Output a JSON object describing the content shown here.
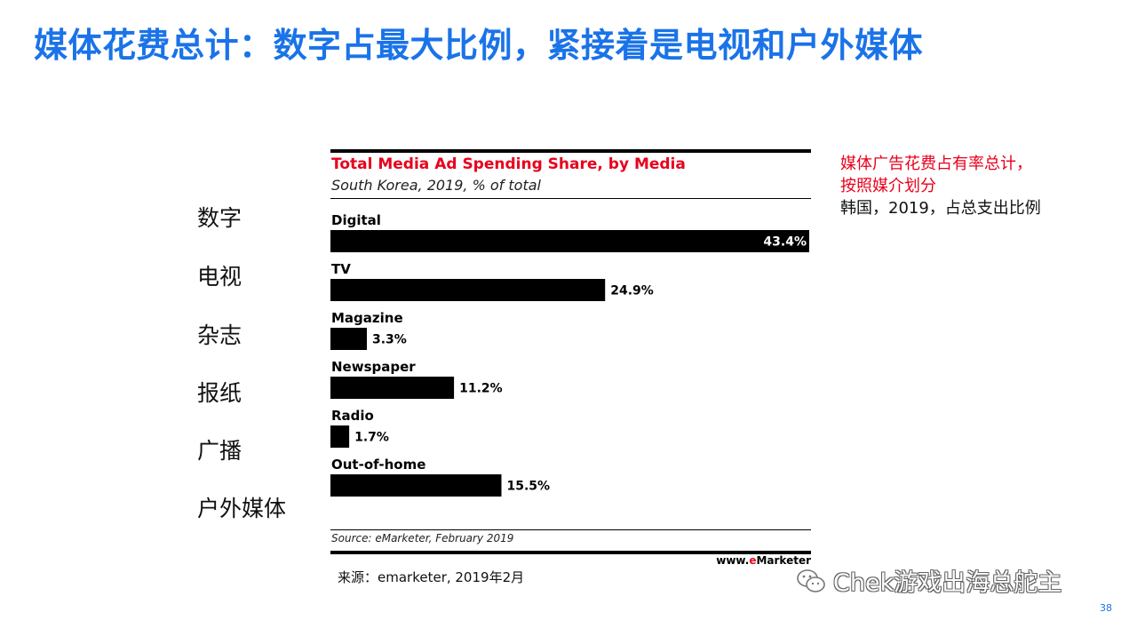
{
  "slide": {
    "title": "媒体花费总计：数字占最大比例，紧接着是电视和户外媒体",
    "cn_labels": [
      "数字",
      "电视",
      "杂志",
      "报纸",
      "广播",
      "户外媒体"
    ],
    "side_note": {
      "line1": "媒体广告花费占有率总计，",
      "line2": "按照媒介划分",
      "line3": "韩国，2019，占总支出比例"
    },
    "caption": "来源：emarketer, 2019年2月",
    "watermark": "Chek游戏出海总舵主",
    "page_number": "38",
    "accent_color": "#1a73e8",
    "highlight_color": "#e8001c"
  },
  "chart_data": {
    "type": "bar",
    "orientation": "horizontal",
    "title": "Total Media Ad Spending Share, by Media",
    "subtitle": "South Korea, 2019, % of total",
    "categories": [
      "Digital",
      "TV",
      "Magazine",
      "Newspaper",
      "Radio",
      "Out-of-home"
    ],
    "values": [
      43.4,
      24.9,
      3.3,
      11.2,
      1.7,
      15.5
    ],
    "value_labels": [
      "43.4%",
      "24.9%",
      "3.3%",
      "11.2%",
      "1.7%",
      "15.5%"
    ],
    "xlim": [
      0,
      43.4
    ],
    "bar_color": "#000000",
    "grid": false,
    "source": "Source: eMarketer, February 2019",
    "brand_prefix": "www.",
    "brand_e": "e",
    "brand_rest": "Marketer"
  }
}
